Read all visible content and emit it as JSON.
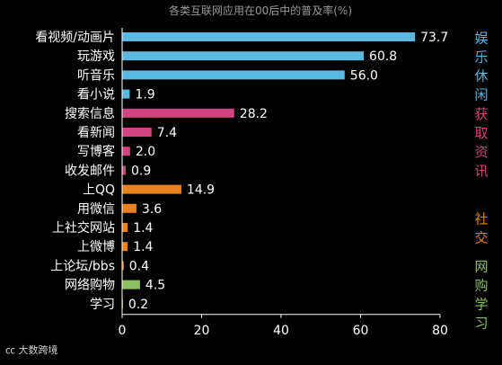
{
  "chart_data": {
    "type": "bar",
    "orientation": "horizontal",
    "title": "各类互联网应用在00后中的普及率(%)",
    "categories": [
      "看视频/动画片",
      "玩游戏",
      "听音乐",
      "看小说",
      "搜索信息",
      "看新闻",
      "写博客",
      "收发邮件",
      "上QQ",
      "用微信",
      "上社交网站",
      "上微博",
      "上论坛/bbs",
      "网络购物",
      "学习"
    ],
    "values": [
      73.7,
      60.8,
      56.0,
      1.9,
      28.2,
      7.4,
      2.0,
      0.9,
      14.9,
      3.6,
      1.4,
      1.4,
      0.4,
      4.5,
      0.2
    ],
    "value_labels": [
      "73.7",
      "60.8",
      "56.0",
      "1.9",
      "28.2",
      "7.4",
      "2.0",
      "0.9",
      "14.9",
      "3.6",
      "1.4",
      "1.4",
      "0.4",
      "4.5",
      "0.2"
    ],
    "groups": [
      {
        "label": "娱乐休闲",
        "start": 0,
        "end": 3,
        "color": "#5bb8e0"
      },
      {
        "label": "获取资讯",
        "start": 4,
        "end": 7,
        "color": "#d0457f"
      },
      {
        "label": "社交",
        "start": 8,
        "end": 12,
        "color": "#e8821f"
      },
      {
        "label": "网购学习",
        "start": 13,
        "end": 14,
        "color": "#8cc063"
      }
    ],
    "xlim": [
      0,
      80
    ],
    "xticks": [
      0,
      20,
      40,
      60,
      80
    ],
    "xtick_labels": [
      "0",
      "20",
      "40",
      "60",
      "80"
    ],
    "grid": false,
    "legend": "right side group labels"
  },
  "watermark": {
    "text": "大数跨境"
  }
}
